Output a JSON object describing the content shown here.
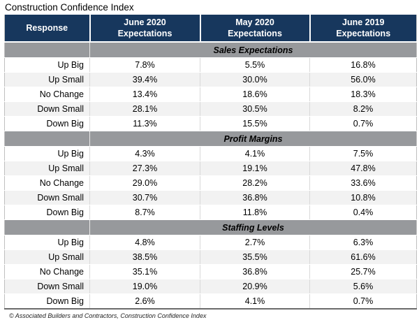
{
  "title": "Construction Confidence Index",
  "footer": "© Associated Builders and Contractors, Construction Confidence Index",
  "header": {
    "columns": [
      "Response",
      "June 2020\nExpectations",
      "May 2020\nExpectations",
      "June 2019\nExpectations"
    ]
  },
  "colors": {
    "header_bg": "#17375d",
    "header_text": "#ffffff",
    "section_band_bg": "#97999c",
    "stripe_row_bg": "#f2f2f2",
    "grid_line": "#d9d9d9"
  },
  "chart_data": {
    "type": "table",
    "title": "Construction Confidence Index",
    "columns": [
      "Response",
      "June 2020 Expectations",
      "May 2020 Expectations",
      "June 2019 Expectations"
    ],
    "value_unit": "%",
    "sections": [
      {
        "name": "Sales Expectations",
        "rows": [
          {
            "response": "Up Big",
            "june_2020": 7.8,
            "may_2020": 5.5,
            "june_2019": 16.8
          },
          {
            "response": "Up Small",
            "june_2020": 39.4,
            "may_2020": 30.0,
            "june_2019": 56.0
          },
          {
            "response": "No Change",
            "june_2020": 13.4,
            "may_2020": 18.6,
            "june_2019": 18.3
          },
          {
            "response": "Down Small",
            "june_2020": 28.1,
            "may_2020": 30.5,
            "june_2019": 8.2
          },
          {
            "response": "Down Big",
            "june_2020": 11.3,
            "may_2020": 15.5,
            "june_2019": 0.7
          }
        ]
      },
      {
        "name": "Profit Margins",
        "rows": [
          {
            "response": "Up Big",
            "june_2020": 4.3,
            "may_2020": 4.1,
            "june_2019": 7.5
          },
          {
            "response": "Up Small",
            "june_2020": 27.3,
            "may_2020": 19.1,
            "june_2019": 47.8
          },
          {
            "response": "No Change",
            "june_2020": 29.0,
            "may_2020": 28.2,
            "june_2019": 33.6
          },
          {
            "response": "Down Small",
            "june_2020": 30.7,
            "may_2020": 36.8,
            "june_2019": 10.8
          },
          {
            "response": "Down Big",
            "june_2020": 8.7,
            "may_2020": 11.8,
            "june_2019": 0.4
          }
        ]
      },
      {
        "name": "Staffing Levels",
        "rows": [
          {
            "response": "Up Big",
            "june_2020": 4.8,
            "may_2020": 2.7,
            "june_2019": 6.3
          },
          {
            "response": "Up Small",
            "june_2020": 38.5,
            "may_2020": 35.5,
            "june_2019": 61.6
          },
          {
            "response": "No Change",
            "june_2020": 35.1,
            "may_2020": 36.8,
            "june_2019": 25.7
          },
          {
            "response": "Down Small",
            "june_2020": 19.0,
            "may_2020": 20.9,
            "june_2019": 5.6
          },
          {
            "response": "Down Big",
            "june_2020": 2.6,
            "may_2020": 4.1,
            "june_2019": 0.7
          }
        ]
      }
    ]
  }
}
